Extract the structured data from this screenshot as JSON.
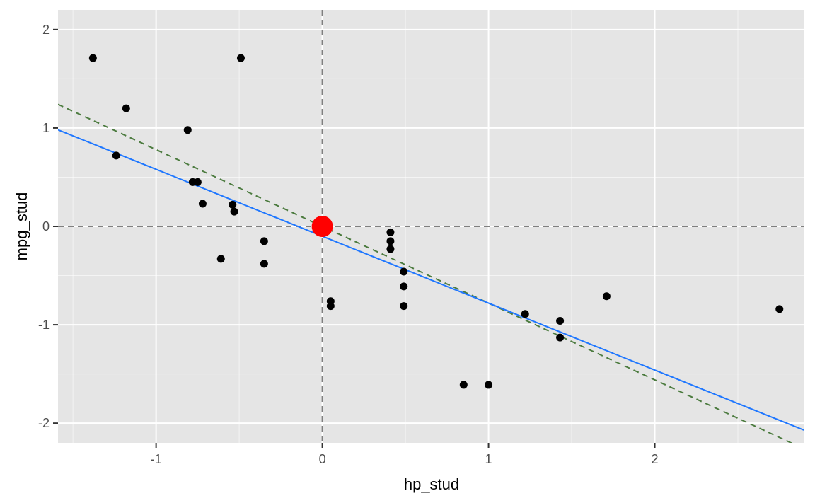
{
  "chart_data": {
    "type": "scatter",
    "title": "",
    "xlabel": "hp_stud",
    "ylabel": "mpg_stud",
    "xlim": [
      -1.59,
      2.9
    ],
    "ylim": [
      -2.2,
      2.2
    ],
    "x_ticks": [
      -1,
      0,
      1,
      2
    ],
    "x_tick_labels": [
      "-1",
      "0",
      "1",
      "2"
    ],
    "y_ticks": [
      -2,
      -1,
      0,
      1,
      2
    ],
    "y_tick_labels": [
      "-2",
      "-1",
      "0",
      "1",
      "2"
    ],
    "grid": true,
    "legend": "none",
    "points": [
      {
        "x": -1.38,
        "y": 1.71
      },
      {
        "x": -0.49,
        "y": 1.71
      },
      {
        "x": -1.18,
        "y": 1.2
      },
      {
        "x": -0.81,
        "y": 0.98
      },
      {
        "x": -1.24,
        "y": 0.72
      },
      {
        "x": -0.78,
        "y": 0.45
      },
      {
        "x": -0.75,
        "y": 0.45
      },
      {
        "x": -0.72,
        "y": 0.23
      },
      {
        "x": -0.54,
        "y": 0.22
      },
      {
        "x": -0.53,
        "y": 0.15
      },
      {
        "x": -0.61,
        "y": -0.33
      },
      {
        "x": -0.35,
        "y": -0.15
      },
      {
        "x": -0.35,
        "y": -0.38
      },
      {
        "x": 0.05,
        "y": -0.76
      },
      {
        "x": 0.05,
        "y": -0.81
      },
      {
        "x": 0.41,
        "y": -0.06
      },
      {
        "x": 0.41,
        "y": -0.15
      },
      {
        "x": 0.41,
        "y": -0.23
      },
      {
        "x": 0.49,
        "y": -0.46
      },
      {
        "x": 0.49,
        "y": -0.61
      },
      {
        "x": 0.49,
        "y": -0.81
      },
      {
        "x": 0.85,
        "y": -1.61
      },
      {
        "x": 1.0,
        "y": -1.61
      },
      {
        "x": 1.22,
        "y": -0.89
      },
      {
        "x": 1.43,
        "y": -0.96
      },
      {
        "x": 1.43,
        "y": -1.13
      },
      {
        "x": 1.71,
        "y": -0.71
      },
      {
        "x": 2.75,
        "y": -0.84
      }
    ],
    "center_point": {
      "x": 0,
      "y": 0,
      "color": "#ff0000"
    },
    "reference_lines": {
      "x0": 0,
      "y0": 0,
      "color": "#7f7f7f"
    },
    "fit_line": {
      "intercept": -0.1,
      "slope": -0.68,
      "color": "#1f77ff"
    },
    "reference_slope_line": {
      "intercept": 0,
      "slope": -0.78,
      "color": "#4c7b3f"
    },
    "colors": {
      "panel_bg": "#e5e5e5",
      "grid_major": "#ffffff",
      "point": "#000000"
    }
  }
}
